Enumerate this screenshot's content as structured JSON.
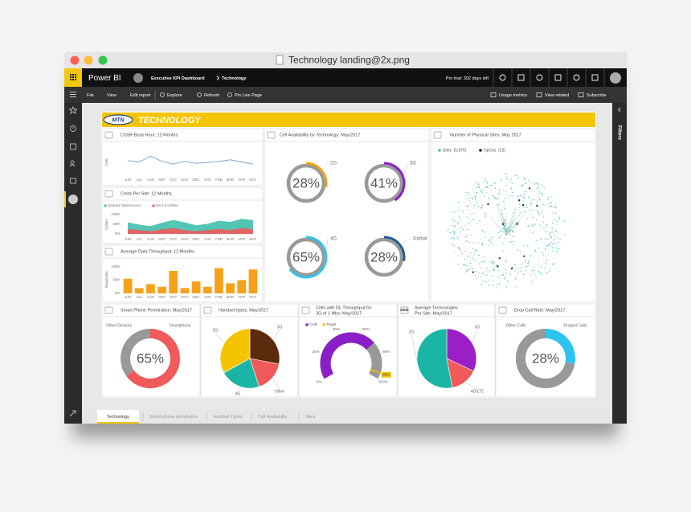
{
  "window": {
    "title": "Technology landing@2x.png"
  },
  "app": {
    "brand": "Power BI",
    "breadcrumb": [
      "Executive KPI Dashboard",
      "Technology"
    ],
    "trial": "Pro trial: 302 days left"
  },
  "toolbar": {
    "left": [
      "File",
      "View",
      "Edit report",
      "Explore",
      "Refresh",
      "Pin Live Page"
    ],
    "right": [
      "Usage metrics",
      "View related",
      "Subscribe"
    ]
  },
  "filters": "Filters",
  "report": {
    "logo": "MTN",
    "title": "TECHNOLOGY"
  },
  "tabs": [
    "Technology",
    "Smart phone penetration",
    "Handset Types",
    "Cell Availability",
    "Sites"
  ],
  "chart_data": [
    {
      "type": "line",
      "title": "CSSR Busy Hour: 12 Months",
      "ylabel": "Cells",
      "categories": [
        "JUN",
        "JUL",
        "AUG",
        "SEP",
        "OCT",
        "NOV",
        "DEC",
        "JAN",
        "FEB",
        "MAR",
        "APR",
        "MAY"
      ],
      "series": [
        {
          "name": "CSSR",
          "color": "#7a9cc6",
          "values": [
            55,
            50,
            72,
            52,
            42,
            52,
            45,
            48,
            52,
            58,
            50,
            42
          ]
        }
      ],
      "ylim": [
        0,
        100
      ]
    },
    {
      "type": "area",
      "title": "Costs Per Site: 12 Months",
      "ylabel": "Dollars",
      "categories": [
        "JUN",
        "JUL",
        "AUG",
        "SEP",
        "OCT",
        "NOV",
        "DEC",
        "JAN",
        "FEB",
        "MAR",
        "APR",
        "MAY"
      ],
      "series": [
        {
          "name": "Network Maintenance",
          "color": "#3fbfad",
          "values": [
            60000000,
            48000000,
            40000000,
            58000000,
            72000000,
            60000000,
            45000000,
            52000000,
            68000000,
            62000000,
            78000000,
            72000000
          ]
        },
        {
          "name": "Rent & Utilities",
          "color": "#f05a5a",
          "values": [
            25000000,
            20000000,
            14000000,
            24000000,
            30000000,
            20000000,
            14000000,
            20000000,
            26000000,
            20000000,
            30000000,
            24000000
          ]
        }
      ],
      "ylim": [
        0,
        100000000
      ],
      "yticks": [
        {
          "value": 0,
          "label": "0M"
        },
        {
          "value": 50000000,
          "label": "50M"
        },
        {
          "value": 100000000,
          "label": "100M"
        }
      ]
    },
    {
      "type": "bar",
      "title": "Average Data Throughput: 12 Months",
      "ylabel": "Megabytes",
      "categories": [
        "JUN",
        "JUL",
        "AUG",
        "SEP",
        "OCT",
        "NOV",
        "DEC",
        "JAN",
        "FEB",
        "MAR",
        "APR",
        "MAY"
      ],
      "series": [
        {
          "name": "Throughput",
          "color": "#f7a11a",
          "values": [
            55000000,
            20000000,
            35000000,
            25000000,
            85000000,
            20000000,
            45000000,
            25000000,
            95000000,
            38000000,
            50000000,
            90000000
          ]
        }
      ],
      "ylim": [
        0,
        100000000
      ],
      "yticks": [
        {
          "value": 0,
          "label": "0M"
        },
        {
          "value": 50000000,
          "label": "50M"
        },
        {
          "value": 100000000,
          "label": "100M"
        }
      ]
    },
    {
      "type": "radial",
      "title": "Cell Availability by Technology: May/2017",
      "categories": [
        "2G",
        "3G",
        "4G",
        "Global"
      ],
      "values": [
        28,
        41,
        65,
        28
      ],
      "value_labels": [
        "28%",
        "41%",
        "65%",
        "28%"
      ],
      "colors": [
        "#f7a11a",
        "#8a1fc7",
        "#2ec4f0",
        "#1f5c99"
      ],
      "track_color": "#999999"
    },
    {
      "type": "network",
      "title": "Number of Physical Sites: May 2017",
      "series": [
        {
          "name": "Sites",
          "color": "#3fbfad",
          "values": [
            5876
          ],
          "value_labels": [
            "(5,876)"
          ]
        },
        {
          "name": "OpCos",
          "color": "#222222",
          "values": [
            23
          ],
          "value_labels": [
            "(23)"
          ]
        }
      ]
    },
    {
      "type": "donut",
      "title": "Smart Phone Penetration: May/2017",
      "categories": [
        "Smartphone",
        "Other Devices"
      ],
      "values": [
        65,
        35
      ],
      "value_labels": [
        "65%",
        null
      ],
      "colors": [
        "#f05a5a",
        "#999999"
      ]
    },
    {
      "type": "pie",
      "title": "Handset types: May/2017",
      "categories": [
        "3G",
        "Other",
        "4G",
        "2G"
      ],
      "values": [
        28,
        17,
        22,
        33
      ],
      "colors": [
        "#5c2a0c",
        "#f05a5a",
        "#1bb5a6",
        "#f5c400"
      ]
    },
    {
      "type": "gauge",
      "title": [
        "Cells with DL Throughput for",
        "3G of 1 Mbs: May/2017"
      ],
      "series": [
        {
          "name": "Cells",
          "color": "#8a1fc7",
          "values": [
            70
          ]
        },
        {
          "name": "Target",
          "color": "#f5c400",
          "values": [
            95
          ],
          "value_labels": [
            "95%"
          ]
        }
      ],
      "ylim": [
        0,
        100
      ],
      "yticks": [
        {
          "value": 0,
          "label": "0%"
        },
        {
          "value": 20,
          "label": "20%"
        },
        {
          "value": 40,
          "label": "40%"
        },
        {
          "value": 60,
          "label": "60%"
        },
        {
          "value": 80,
          "label": "80%"
        },
        {
          "value": 100,
          "label": "100%"
        }
      ],
      "track_color": "#999999"
    },
    {
      "type": "pie",
      "title": [
        "Average Technologies",
        "Per Site: May/2017"
      ],
      "badge": "GEN",
      "categories": [
        "3G",
        "4G/LTE",
        "2G"
      ],
      "values": [
        32,
        15,
        53
      ],
      "colors": [
        "#9b1fc7",
        "#f05a5a",
        "#1bb5a6"
      ]
    },
    {
      "type": "donut",
      "title": "Drop Call Rate: May/2017",
      "categories": [
        "Droped Calls",
        "Other Calls"
      ],
      "values": [
        28,
        72
      ],
      "value_labels": [
        "28%",
        null
      ],
      "colors": [
        "#2ec4f0",
        "#999999"
      ]
    }
  ]
}
